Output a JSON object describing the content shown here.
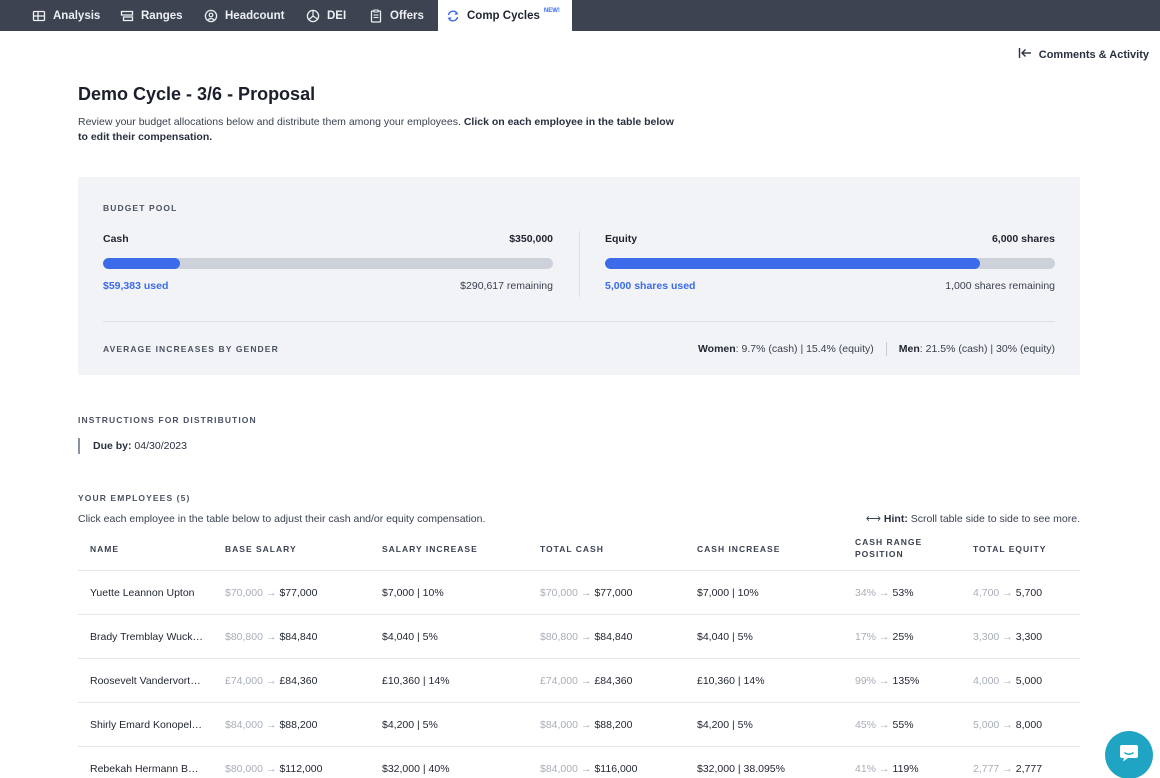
{
  "nav": {
    "tabs": [
      {
        "label": "Analysis",
        "icon": "table-icon"
      },
      {
        "label": "Ranges",
        "icon": "ranges-icon"
      },
      {
        "label": "Headcount",
        "icon": "people-icon"
      },
      {
        "label": "DEI",
        "icon": "pie-icon"
      },
      {
        "label": "Offers",
        "icon": "clipboard-icon"
      },
      {
        "label": "Comp Cycles",
        "icon": "refresh-icon",
        "badge": "NEW!",
        "active": true
      }
    ]
  },
  "comments_label": "Comments & Activity",
  "page": {
    "title": "Demo Cycle - 3/6 - Proposal",
    "intro_plain": "Review your budget allocations below and distribute them among your employees. ",
    "intro_bold": "Click on each employee in the table below to edit their compensation."
  },
  "budget": {
    "label": "BUDGET POOL",
    "cash": {
      "title": "Cash",
      "total": "$350,000",
      "used": "$59,383 used",
      "remaining": "$290,617 remaining",
      "fraction_used": 0.17
    },
    "equity": {
      "title": "Equity",
      "total": "6,000 shares",
      "used": "5,000 shares used",
      "remaining": "1,000 shares remaining",
      "fraction_used": 0.833
    },
    "gender_label": "AVERAGE INCREASES BY GENDER",
    "women_label": "Women",
    "women_value": ": 9.7% (cash) | 15.4% (equity)",
    "men_label": "Men",
    "men_value": ": 21.5% (cash) | 30% (equity)"
  },
  "instructions": {
    "label": "INSTRUCTIONS FOR DISTRIBUTION",
    "due_label": "Due by:",
    "due_value": " 04/30/2023"
  },
  "employees": {
    "label": "YOUR EMPLOYEES (5)",
    "description": "Click each employee in the table below to adjust their cash and/or equity compensation.",
    "hint_label": "Hint:",
    "hint_text": " Scroll table side to side to see more.",
    "columns": {
      "name": "NAME",
      "base": "BASE SALARY",
      "salary_inc": "SALARY INCREASE",
      "total_cash": "TOTAL CASH",
      "cash_inc": "CASH INCREASE",
      "range_pos_1": "CASH RANGE",
      "range_pos_2": "POSITION",
      "equity": "TOTAL EQUITY"
    },
    "rows": [
      {
        "name": "Yuette Leannon Upton",
        "base_old": "$70,000",
        "base_new": "$77,000",
        "salary_inc": "$7,000 | 10%",
        "cash_old": "$70,000",
        "cash_new": "$77,000",
        "cash_inc": "$7,000 | 10%",
        "pos_old": "34%",
        "pos_new": "53%",
        "eq_old": "4,700",
        "eq_new": "5,700"
      },
      {
        "name": "Brady Tremblay Wuck…",
        "base_old": "$80,800",
        "base_new": "$84,840",
        "salary_inc": "$4,040 | 5%",
        "cash_old": "$80,800",
        "cash_new": "$84,840",
        "cash_inc": "$4,040 | 5%",
        "pos_old": "17%",
        "pos_new": "25%",
        "eq_old": "3,300",
        "eq_new": "3,300"
      },
      {
        "name": "Roosevelt Vandervort…",
        "base_old": "£74,000",
        "base_new": "£84,360",
        "salary_inc": "£10,360 | 14%",
        "cash_old": "£74,000",
        "cash_new": "£84,360",
        "cash_inc": "£10,360 | 14%",
        "pos_old": "99%",
        "pos_new": "135%",
        "eq_old": "4,000",
        "eq_new": "5,000"
      },
      {
        "name": "Shirly Emard Konopel…",
        "base_old": "$84,000",
        "base_new": "$88,200",
        "salary_inc": "$4,200 | 5%",
        "cash_old": "$84,000",
        "cash_new": "$88,200",
        "cash_inc": "$4,200 | 5%",
        "pos_old": "45%",
        "pos_new": "55%",
        "eq_old": "5,000",
        "eq_new": "8,000"
      },
      {
        "name": "Rebekah Hermann B…",
        "base_old": "$80,000",
        "base_new": "$112,000",
        "salary_inc": "$32,000 | 40%",
        "cash_old": "$84,000",
        "cash_new": "$116,000",
        "cash_inc": "$32,000 | 38.095%",
        "pos_old": "41%",
        "pos_new": "119%",
        "eq_old": "2,777",
        "eq_new": "2,777"
      }
    ]
  },
  "colors": {
    "accent": "#3b6be8",
    "nav_bg": "#3d4350",
    "panel_bg": "#f1f3f6",
    "chat_button": "#1fa4c4"
  }
}
